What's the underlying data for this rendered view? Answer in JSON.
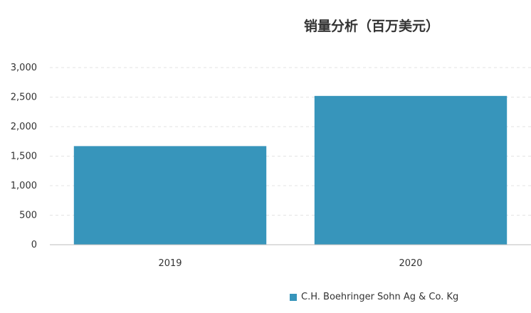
{
  "chart_data": {
    "type": "bar",
    "title": "销量分析（百万美元）",
    "categories": [
      "2019",
      "2020"
    ],
    "series": [
      {
        "name": "C.H. Boehringer Sohn Ag & Co. Kg",
        "color": "#3795bb",
        "values": [
          1670,
          2520
        ]
      }
    ],
    "ylim": [
      0,
      3000
    ],
    "yticks": [
      0,
      500,
      1000,
      1500,
      2000,
      2500,
      3000
    ],
    "ytick_labels": [
      "0",
      "500",
      "1,000",
      "1,500",
      "2,000",
      "2,500",
      "3,000"
    ],
    "grid": true,
    "legend_position": "bottom-right"
  }
}
